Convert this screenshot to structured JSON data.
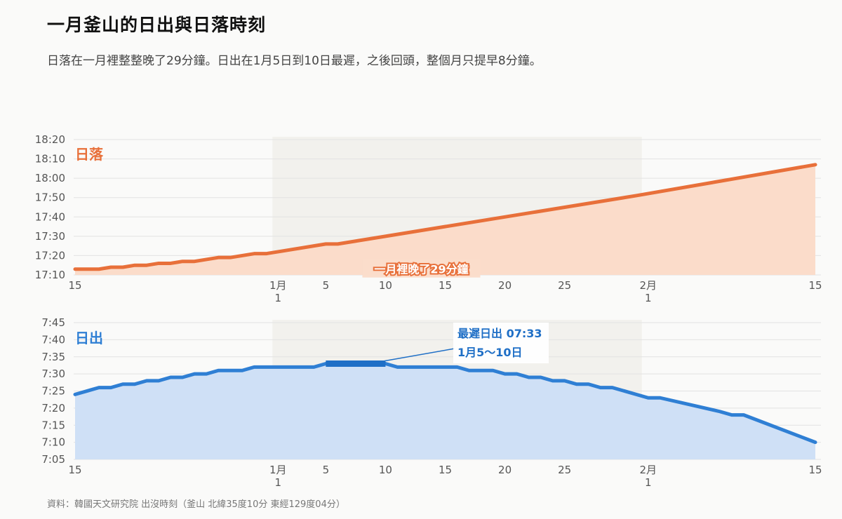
{
  "title": "一月釜山的日出與日落時刻",
  "subtitle": "日落在一月裡整整晚了29分鐘。日出在1月5日到10日最遲，之後回頭，整個月只提早8分鐘。",
  "source": "資料：韓國天文研究院 出沒時刻（釜山 北緯35度10分 東經129度04分）",
  "colors": {
    "sunset_line": "#e8703a",
    "sunset_fill": "#fbdcca",
    "sunrise_line": "#2f7fd4",
    "sunrise_fill": "#cfe0f6",
    "january_band": "#f2f1ed",
    "grid": "#e2e2e2"
  },
  "chart_data": [
    {
      "type": "area",
      "label": "日落",
      "x_range": [
        "12-15",
        "02-15"
      ],
      "highlight_range": [
        "01-01",
        "01-31"
      ],
      "ylim": [
        "17:10",
        "18:20"
      ],
      "yticks": [
        "17:10",
        "17:20",
        "17:30",
        "17:40",
        "17:50",
        "18:00",
        "18:10",
        "18:20"
      ],
      "xticks": [
        {
          "date": "12-15",
          "label": "15"
        },
        {
          "date": "01-01",
          "label": "1月",
          "sub": "1"
        },
        {
          "date": "01-05",
          "label": "5"
        },
        {
          "date": "01-10",
          "label": "10"
        },
        {
          "date": "01-15",
          "label": "15"
        },
        {
          "date": "01-20",
          "label": "20"
        },
        {
          "date": "01-25",
          "label": "25"
        },
        {
          "date": "02-01",
          "label": "2月",
          "sub": "1"
        },
        {
          "date": "02-15",
          "label": "15"
        }
      ],
      "points": [
        [
          "12-15",
          "17:13"
        ],
        [
          "12-16",
          "17:13"
        ],
        [
          "12-17",
          "17:13"
        ],
        [
          "12-18",
          "17:14"
        ],
        [
          "12-19",
          "17:14"
        ],
        [
          "12-20",
          "17:15"
        ],
        [
          "12-21",
          "17:15"
        ],
        [
          "12-22",
          "17:16"
        ],
        [
          "12-23",
          "17:16"
        ],
        [
          "12-24",
          "17:17"
        ],
        [
          "12-25",
          "17:17"
        ],
        [
          "12-26",
          "17:18"
        ],
        [
          "12-27",
          "17:19"
        ],
        [
          "12-28",
          "17:19"
        ],
        [
          "12-29",
          "17:20"
        ],
        [
          "12-30",
          "17:21"
        ],
        [
          "12-31",
          "17:21"
        ],
        [
          "01-01",
          "17:22"
        ],
        [
          "01-05",
          "17:26"
        ],
        [
          "01-06",
          "17:26"
        ],
        [
          "01-10",
          "17:30"
        ],
        [
          "01-31",
          "17:51"
        ],
        [
          "02-15",
          "18:07"
        ]
      ],
      "annotation": {
        "text": "一月裡晚了29分鐘",
        "at": [
          "01-13",
          "17:13"
        ]
      }
    },
    {
      "type": "area",
      "label": "日出",
      "x_range": [
        "12-15",
        "02-15"
      ],
      "highlight_range": [
        "01-01",
        "01-31"
      ],
      "ylim": [
        "7:05",
        "7:45"
      ],
      "yticks": [
        "7:05",
        "7:10",
        "7:15",
        "7:20",
        "7:25",
        "7:30",
        "7:35",
        "7:40",
        "7:45"
      ],
      "xticks": [
        {
          "date": "12-15",
          "label": "15"
        },
        {
          "date": "01-01",
          "label": "1月",
          "sub": "1"
        },
        {
          "date": "01-05",
          "label": "5"
        },
        {
          "date": "01-10",
          "label": "10"
        },
        {
          "date": "01-15",
          "label": "15"
        },
        {
          "date": "01-20",
          "label": "20"
        },
        {
          "date": "01-25",
          "label": "25"
        },
        {
          "date": "02-01",
          "label": "2月",
          "sub": "1"
        },
        {
          "date": "02-15",
          "label": "15"
        }
      ],
      "points": [
        [
          "12-15",
          "7:24"
        ],
        [
          "12-17",
          "7:26"
        ],
        [
          "12-18",
          "7:26"
        ],
        [
          "12-19",
          "7:27"
        ],
        [
          "12-20",
          "7:27"
        ],
        [
          "12-21",
          "7:28"
        ],
        [
          "12-22",
          "7:28"
        ],
        [
          "12-23",
          "7:29"
        ],
        [
          "12-24",
          "7:29"
        ],
        [
          "12-25",
          "7:30"
        ],
        [
          "12-26",
          "7:30"
        ],
        [
          "12-27",
          "7:31"
        ],
        [
          "12-29",
          "7:31"
        ],
        [
          "12-30",
          "7:32"
        ],
        [
          "01-04",
          "7:32"
        ],
        [
          "01-05",
          "7:33"
        ],
        [
          "01-10",
          "7:33"
        ],
        [
          "01-11",
          "7:32"
        ],
        [
          "01-16",
          "7:32"
        ],
        [
          "01-17",
          "7:31"
        ],
        [
          "01-19",
          "7:31"
        ],
        [
          "01-20",
          "7:30"
        ],
        [
          "01-21",
          "7:30"
        ],
        [
          "01-22",
          "7:29"
        ],
        [
          "01-23",
          "7:29"
        ],
        [
          "01-24",
          "7:28"
        ],
        [
          "01-25",
          "7:28"
        ],
        [
          "01-26",
          "7:27"
        ],
        [
          "01-27",
          "7:27"
        ],
        [
          "01-28",
          "7:26"
        ],
        [
          "01-29",
          "7:26"
        ],
        [
          "01-31",
          "7:24"
        ],
        [
          "02-01",
          "7:23"
        ],
        [
          "02-02",
          "7:23"
        ],
        [
          "02-07",
          "7:19"
        ],
        [
          "02-08",
          "7:18"
        ],
        [
          "02-09",
          "7:18"
        ],
        [
          "02-15",
          "7:10"
        ]
      ],
      "highlight_segment": [
        [
          "01-05",
          "7:33"
        ],
        [
          "01-10",
          "7:33"
        ]
      ],
      "annotation": {
        "lines": [
          "最遲日出 07:33",
          "1月5～10日"
        ]
      }
    }
  ]
}
